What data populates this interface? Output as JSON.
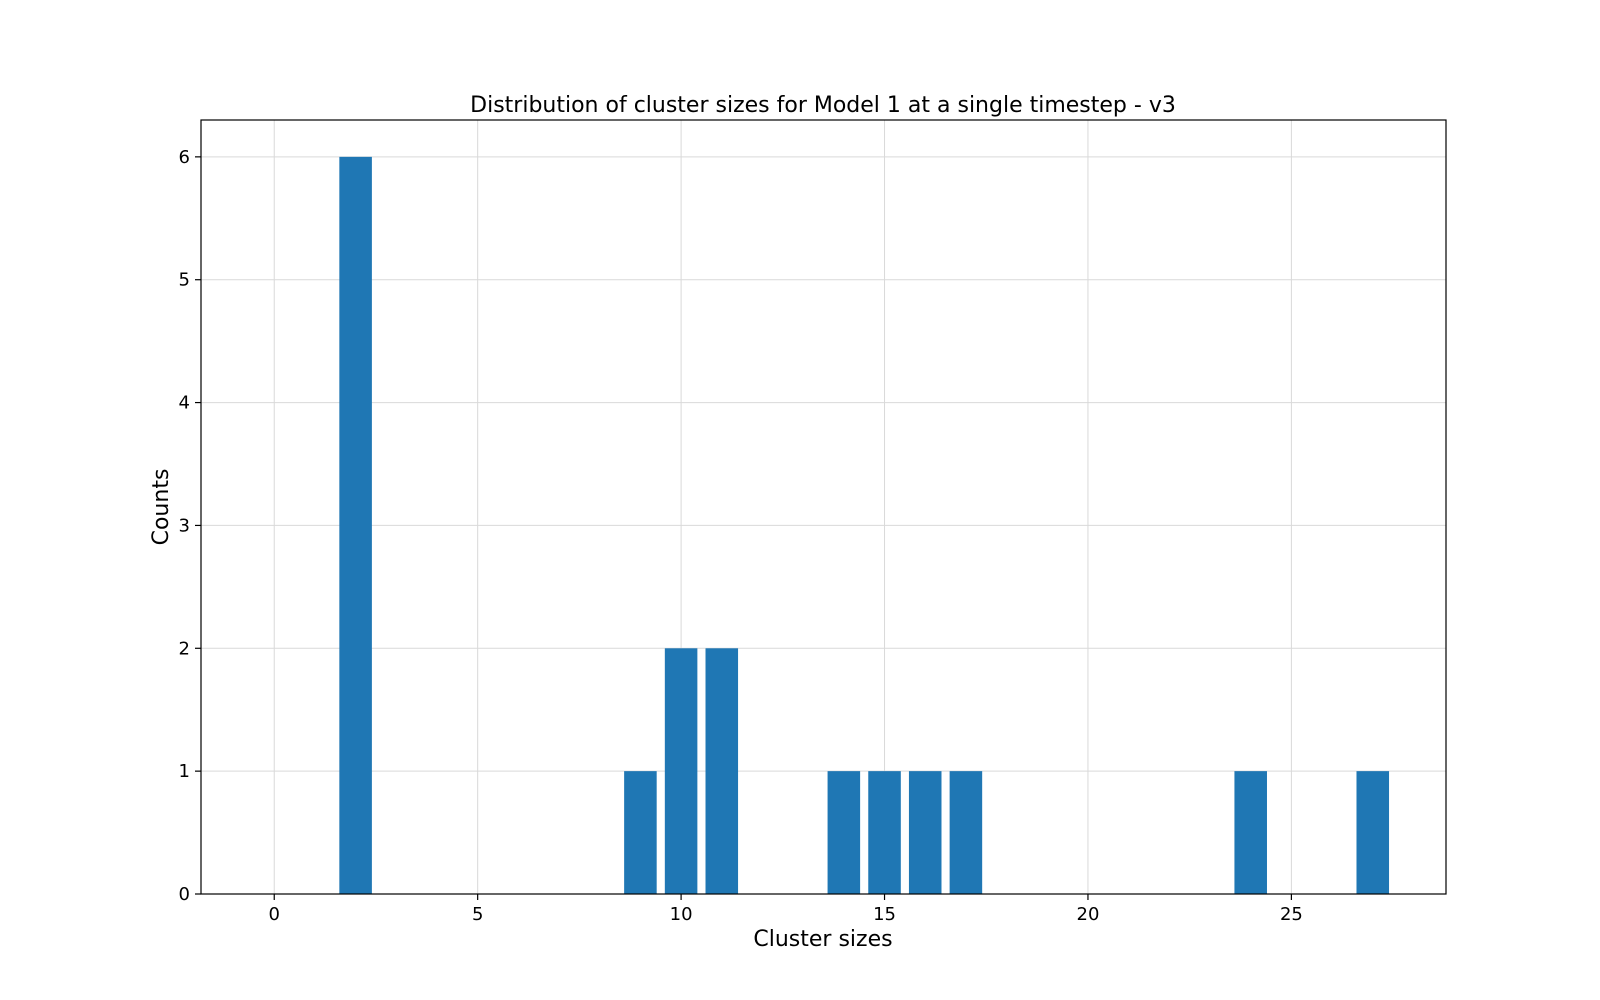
{
  "chart_data": {
    "type": "bar",
    "title": "Distribution of cluster sizes for Model 1 at a single timestep - v3",
    "xlabel": "Cluster sizes",
    "ylabel": "Counts",
    "x": [
      2,
      9,
      10,
      11,
      14,
      15,
      16,
      17,
      24,
      27
    ],
    "values": [
      6,
      1,
      2,
      2,
      1,
      1,
      1,
      1,
      1,
      1
    ],
    "bar_width": 0.8,
    "xlim": [
      -1.8,
      28.8
    ],
    "ylim": [
      0,
      6.3
    ],
    "xticks": [
      0,
      5,
      10,
      15,
      20,
      25
    ],
    "xtick_labels": [
      "0",
      "5",
      "10",
      "15",
      "20",
      "25"
    ],
    "yticks": [
      0,
      1,
      2,
      3,
      4,
      5,
      6
    ],
    "ytick_labels": [
      "0",
      "1",
      "2",
      "3",
      "4",
      "5",
      "6"
    ],
    "grid": true,
    "colors": {
      "bar": "#1f77b4",
      "grid": "#d9d9d9",
      "axes": "#000000"
    }
  }
}
